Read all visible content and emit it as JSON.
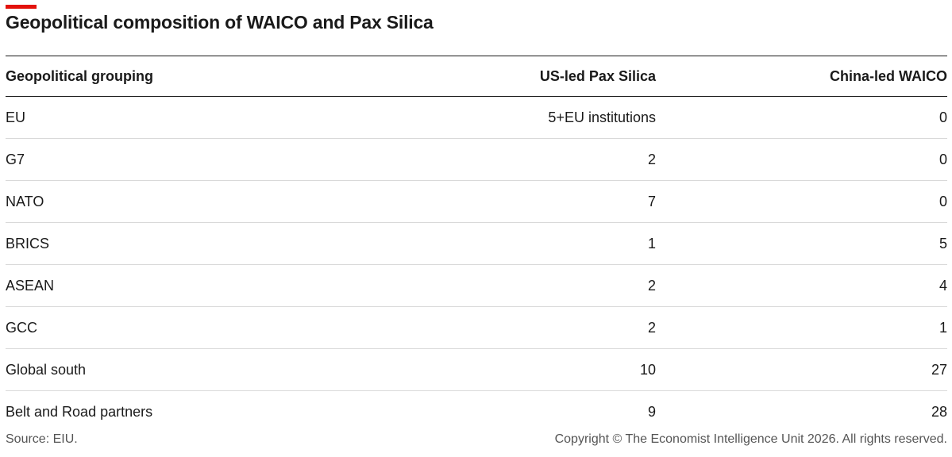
{
  "title": "Geopolitical composition of WAICO and Pax Silica",
  "accent_color": "#e3120b",
  "source": "Source: EIU.",
  "copyright": "Copyright © The Economist Intelligence Unit 2026. All rights reserved.",
  "chart_data": {
    "type": "table",
    "title": "Geopolitical composition of WAICO and Pax Silica",
    "columns": [
      "Geopolitical grouping",
      "US-led Pax Silica",
      "China-led WAICO"
    ],
    "rows": [
      [
        "EU",
        "5+EU institutions",
        "0"
      ],
      [
        "G7",
        "2",
        "0"
      ],
      [
        "NATO",
        "7",
        "0"
      ],
      [
        "BRICS",
        "1",
        "5"
      ],
      [
        "ASEAN",
        "2",
        "4"
      ],
      [
        "GCC",
        "2",
        "1"
      ],
      [
        "Global south",
        "10",
        "27"
      ],
      [
        "Belt and Road partners",
        "9",
        "28"
      ]
    ]
  }
}
